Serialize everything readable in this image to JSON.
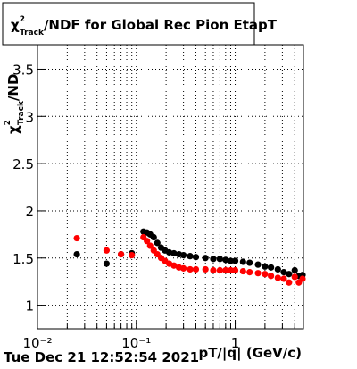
{
  "chart_data": {
    "type": "scatter",
    "title": {
      "symbol": "χ",
      "sup": "2",
      "sub": "Track",
      "text": "/NDF for Global Rec Pion EtapT"
    },
    "ylabel": {
      "symbol": "χ",
      "sup": "2",
      "sub": "Track",
      "text": "/ND"
    },
    "xlabel": "pT/|q| (GeV/c)",
    "date": "Tue Dec 21 12:52:54 2021",
    "xscale": "log",
    "xlim": [
      0.01,
      4.9
    ],
    "ylim": [
      0.75,
      3.76
    ],
    "xticks": [
      {
        "value": 0.01,
        "label": "10⁻²"
      },
      {
        "value": 0.1,
        "label": "10⁻¹"
      },
      1
    ],
    "xminor": [
      0.02,
      0.03,
      0.04,
      0.05,
      0.06,
      0.07,
      0.08,
      0.09,
      0.2,
      0.3,
      0.4,
      0.5,
      0.6,
      0.7,
      0.8,
      0.9,
      2,
      3,
      4
    ],
    "yticks": [
      1,
      1.5,
      2,
      2.5,
      3,
      3.5
    ],
    "grid": true,
    "series": [
      {
        "color": "#000000",
        "x": [
          0.025,
          0.05,
          0.07,
          0.09,
          0.118,
          0.128,
          0.138,
          0.15,
          0.163,
          0.178,
          0.195,
          0.215,
          0.24,
          0.27,
          0.3,
          0.35,
          0.4,
          0.5,
          0.6,
          0.7,
          0.8,
          0.9,
          1,
          1.2,
          1.4,
          1.7,
          2,
          2.3,
          2.7,
          3.1,
          3.5,
          4,
          4.4,
          4.8
        ],
        "values": [
          1.54,
          1.44,
          1.54,
          1.55,
          1.78,
          1.77,
          1.75,
          1.72,
          1.66,
          1.61,
          1.58,
          1.56,
          1.55,
          1.54,
          1.53,
          1.52,
          1.51,
          1.5,
          1.49,
          1.49,
          1.48,
          1.47,
          1.47,
          1.46,
          1.45,
          1.43,
          1.41,
          1.4,
          1.38,
          1.35,
          1.33,
          1.37,
          1.31,
          1.32
        ]
      },
      {
        "color": "#ff0000",
        "x": [
          0.025,
          0.05,
          0.07,
          0.09,
          0.118,
          0.128,
          0.138,
          0.15,
          0.163,
          0.178,
          0.195,
          0.215,
          0.24,
          0.27,
          0.3,
          0.35,
          0.4,
          0.5,
          0.6,
          0.7,
          0.8,
          0.9,
          1,
          1.2,
          1.4,
          1.7,
          2,
          2.3,
          2.7,
          3.1,
          3.5,
          4,
          4.4,
          4.8
        ],
        "values": [
          1.71,
          1.58,
          1.54,
          1.53,
          1.72,
          1.68,
          1.63,
          1.58,
          1.54,
          1.5,
          1.47,
          1.44,
          1.42,
          1.4,
          1.39,
          1.38,
          1.38,
          1.38,
          1.37,
          1.37,
          1.37,
          1.37,
          1.37,
          1.36,
          1.35,
          1.34,
          1.33,
          1.31,
          1.29,
          1.28,
          1.24,
          1.3,
          1.24,
          1.28
        ]
      }
    ]
  }
}
